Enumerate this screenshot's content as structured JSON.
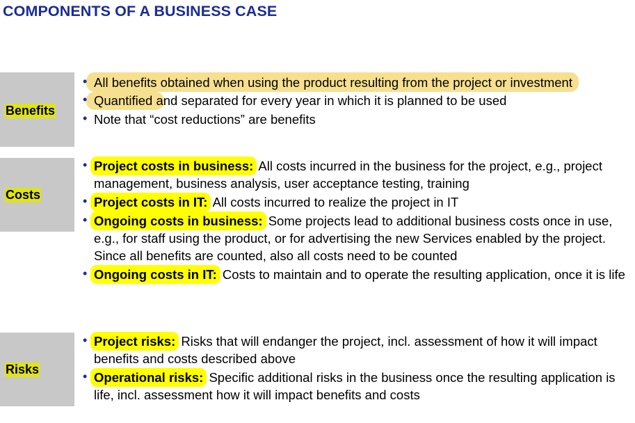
{
  "title": "COMPONENTS OF A BUSINESS CASE",
  "sections": {
    "benefits": {
      "label": "Benefits",
      "items": [
        "All benefits obtained when using the product resulting from the project or investment",
        "Quantified and separated for every year in which it is planned to be used",
        "Note that “cost reductions” are benefits"
      ]
    },
    "costs": {
      "label": "Costs",
      "items": [
        {
          "term": "Project costs in business:",
          "text": " All costs incurred in the business for the project, e.g., project management, business analysis, user acceptance testing, training"
        },
        {
          "term": "Project costs in IT:",
          "text": " All costs incurred to realize the project in IT"
        },
        {
          "term": "Ongoing costs in business:",
          "text": " Some projects lead to additional business costs once in use, e.g., for staff using the product, or for advertising the new Services enabled by the project. Since all benefits are counted, also all costs need to be counted"
        },
        {
          "term": "Ongoing costs in IT:",
          "text": " Costs to maintain and to operate the resulting application, once it is life"
        }
      ]
    },
    "risks": {
      "label": "Risks",
      "items": [
        {
          "term": "Project risks:",
          "text": " Risks that will endanger the project, incl. assessment of how it will impact benefits and costs described above"
        },
        {
          "term": "Operational risks:",
          "text": " Specific additional risks in the business once the resulting application is life, incl. assessment how it will impact benefits and costs"
        }
      ]
    }
  },
  "colors": {
    "title": "#1a2c96",
    "label_bg": "#c8c8c8",
    "label_highlight": "#dfe31a",
    "term_highlight": "#ffff00",
    "marker": "#f3d56a"
  }
}
